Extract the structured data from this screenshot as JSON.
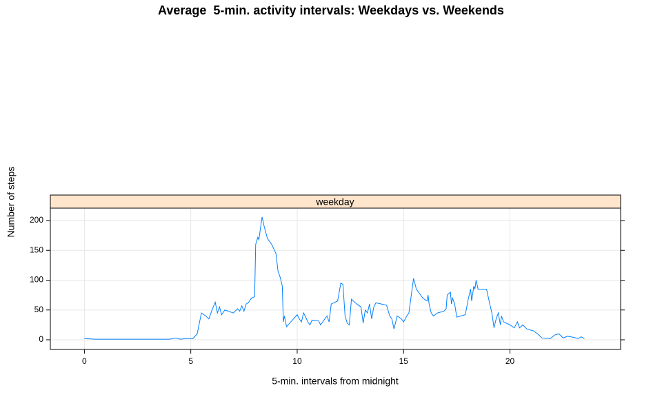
{
  "chart_data": {
    "type": "line",
    "title": "Average  5-min. activity intervals: Weekdays vs. Weekends",
    "panel_label": "weekday",
    "x_label": "5-min. intervals from midnight",
    "y_label": "Number of steps",
    "color": "#0080ff",
    "grid": true,
    "xlim": [
      -1.6,
      25.2
    ],
    "ylim": [
      -16.2,
      220.8
    ],
    "xticks": [
      0,
      5,
      10,
      15,
      20
    ],
    "yticks": [
      0,
      50,
      100,
      150,
      200
    ],
    "x": [
      0,
      0.5,
      1,
      2,
      3,
      4,
      4.3,
      4.5,
      4.8,
      5.1,
      5.3,
      5.5,
      5.7,
      5.85,
      6.0,
      6.15,
      6.25,
      6.35,
      6.45,
      6.6,
      7.0,
      7.2,
      7.3,
      7.4,
      7.5,
      7.6,
      7.7,
      7.85,
      8.0,
      8.05,
      8.15,
      8.2,
      8.35,
      8.45,
      8.6,
      8.8,
      9.0,
      9.1,
      9.2,
      9.3,
      9.35,
      9.4,
      9.5,
      9.7,
      10.0,
      10.1,
      10.2,
      10.3,
      10.4,
      10.5,
      10.6,
      10.7,
      11.0,
      11.1,
      11.3,
      11.4,
      11.5,
      11.6,
      11.9,
      12.05,
      12.15,
      12.25,
      12.35,
      12.45,
      12.55,
      12.8,
      13.0,
      13.1,
      13.2,
      13.3,
      13.4,
      13.5,
      13.6,
      13.7,
      14.2,
      14.35,
      14.45,
      14.55,
      14.7,
      14.9,
      15.0,
      15.15,
      15.25,
      15.4,
      15.47,
      15.6,
      15.9,
      16.1,
      16.15,
      16.2,
      16.3,
      16.4,
      16.6,
      16.9,
      17.0,
      17.05,
      17.2,
      17.25,
      17.3,
      17.4,
      17.5,
      17.9,
      18.05,
      18.15,
      18.2,
      18.3,
      18.35,
      18.41,
      18.5,
      18.9,
      19.05,
      19.15,
      19.25,
      19.35,
      19.45,
      19.55,
      19.6,
      19.7,
      20.0,
      20.2,
      20.35,
      20.45,
      20.6,
      20.8,
      21.1,
      21.3,
      21.5,
      21.9,
      22.1,
      22.3,
      22.5,
      22.7,
      23.0,
      23.2,
      23.35,
      23.5
    ],
    "values": [
      2,
      1,
      1,
      1,
      1,
      1,
      3,
      1,
      2,
      2,
      10,
      45,
      40,
      35,
      50,
      63,
      45,
      55,
      42,
      50,
      45,
      52,
      48,
      57,
      48,
      60,
      62,
      70,
      72,
      160,
      172,
      168,
      206,
      190,
      170,
      160,
      145,
      115,
      105,
      90,
      30,
      40,
      22,
      30,
      42,
      35,
      30,
      45,
      38,
      30,
      25,
      33,
      32,
      25,
      35,
      40,
      30,
      60,
      65,
      95,
      93,
      40,
      28,
      25,
      68,
      60,
      55,
      28,
      50,
      45,
      60,
      35,
      55,
      62,
      58,
      40,
      35,
      18,
      40,
      35,
      30,
      40,
      45,
      85,
      103,
      85,
      70,
      65,
      75,
      60,
      45,
      40,
      45,
      48,
      52,
      75,
      80,
      60,
      70,
      60,
      38,
      42,
      70,
      85,
      65,
      90,
      85,
      100,
      85,
      85,
      60,
      45,
      20,
      35,
      45,
      25,
      40,
      30,
      25,
      20,
      30,
      20,
      25,
      18,
      15,
      10,
      3,
      2,
      8,
      10,
      3,
      6,
      4,
      2,
      5,
      2
    ]
  }
}
